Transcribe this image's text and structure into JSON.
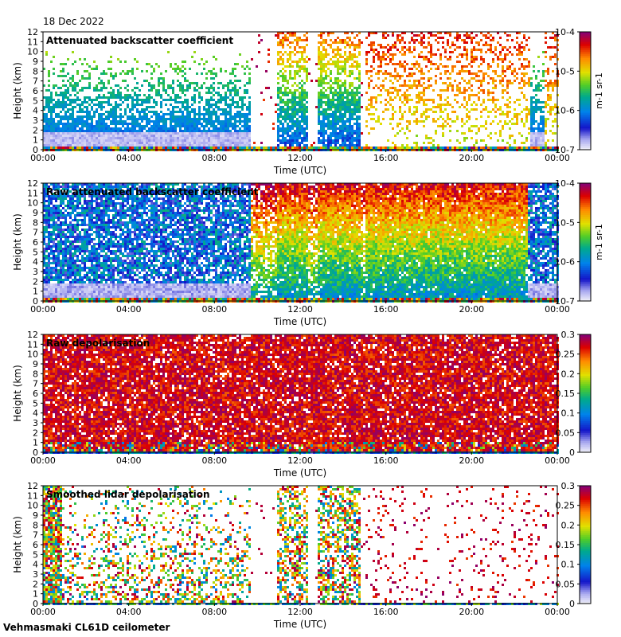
{
  "header": {
    "date": "18 Dec 2022"
  },
  "footer": {
    "instrument": "Vehmasmaki CL61D ceilometer"
  },
  "chart_data": [
    {
      "type": "heatmap",
      "title": "Attenuated backscatter coefficient",
      "xlabel": "Time (UTC)",
      "ylabel": "Height (km)",
      "x_ticks": [
        "00:00",
        "04:00",
        "08:00",
        "12:00",
        "16:00",
        "20:00",
        "00:00"
      ],
      "y_ticks": [
        "0",
        "1",
        "2",
        "3",
        "4",
        "5",
        "6",
        "7",
        "8",
        "9",
        "10",
        "11",
        "12"
      ],
      "xlim": [
        0,
        24
      ],
      "ylim": [
        0,
        12
      ],
      "colorbar": {
        "scale": "log",
        "range": [
          1e-07,
          0.0001
        ],
        "labels": [
          "10-7",
          "10-6",
          "10-5",
          "10-4"
        ],
        "unit": "m-1 sr-1"
      }
    },
    {
      "type": "heatmap",
      "title": "Raw attenuated backscatter coefficient",
      "xlabel": "Time (UTC)",
      "ylabel": "Height (km)",
      "x_ticks": [
        "00:00",
        "04:00",
        "08:00",
        "12:00",
        "16:00",
        "20:00",
        "00:00"
      ],
      "y_ticks": [
        "0",
        "1",
        "2",
        "3",
        "4",
        "5",
        "6",
        "7",
        "8",
        "9",
        "10",
        "11",
        "12"
      ],
      "xlim": [
        0,
        24
      ],
      "ylim": [
        0,
        12
      ],
      "colorbar": {
        "scale": "log",
        "range": [
          1e-07,
          0.0001
        ],
        "labels": [
          "10-7",
          "10-6",
          "10-5",
          "10-4"
        ],
        "unit": "m-1 sr-1"
      }
    },
    {
      "type": "heatmap",
      "title": "Raw depolarisation",
      "xlabel": "Time (UTC)",
      "ylabel": "Height (km)",
      "x_ticks": [
        "00:00",
        "04:00",
        "08:00",
        "12:00",
        "16:00",
        "20:00",
        "00:00"
      ],
      "y_ticks": [
        "0",
        "1",
        "2",
        "3",
        "4",
        "5",
        "6",
        "7",
        "8",
        "9",
        "10",
        "11",
        "12"
      ],
      "xlim": [
        0,
        24
      ],
      "ylim": [
        0,
        12
      ],
      "colorbar": {
        "scale": "linear",
        "range": [
          0,
          0.3
        ],
        "labels": [
          "0",
          "0.05",
          "0.1",
          "0.15",
          "0.2",
          "0.25",
          "0.3"
        ],
        "unit": ""
      }
    },
    {
      "type": "heatmap",
      "title": "Smoothed lidar depolarisation",
      "xlabel": "Time (UTC)",
      "ylabel": "Height (km)",
      "x_ticks": [
        "00:00",
        "04:00",
        "08:00",
        "12:00",
        "16:00",
        "20:00",
        "00:00"
      ],
      "y_ticks": [
        "0",
        "1",
        "2",
        "3",
        "4",
        "5",
        "6",
        "7",
        "8",
        "9",
        "10",
        "11",
        "12"
      ],
      "xlim": [
        0,
        24
      ],
      "ylim": [
        0,
        12
      ],
      "colorbar": {
        "scale": "linear",
        "range": [
          0,
          0.3
        ],
        "labels": [
          "0",
          "0.05",
          "0.1",
          "0.15",
          "0.2",
          "0.25",
          "0.3"
        ],
        "unit": ""
      }
    }
  ]
}
